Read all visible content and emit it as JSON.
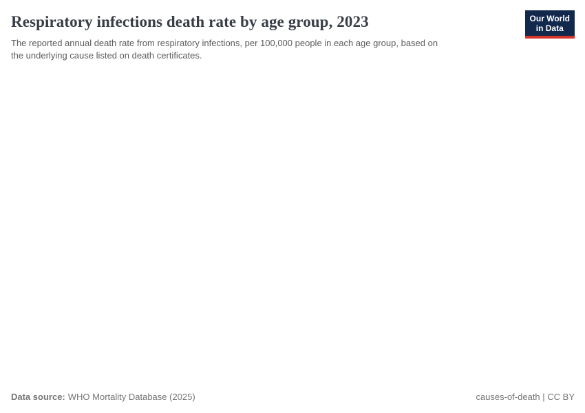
{
  "header": {
    "title": "Respiratory infections death rate by age group, 2023",
    "subtitle": "The reported annual death rate from respiratory infections, per 100,000 people in each age group, based on\nthe underlying cause listed on death certificates.",
    "logo": {
      "line1": "Our World",
      "line2": "in Data"
    }
  },
  "chart_data": {
    "type": "none",
    "title": "Respiratory infections death rate by age group, 2023",
    "year_shown": "2023",
    "series": [],
    "plot_area_empty": true
  },
  "footer": {
    "source_label": "Data source:",
    "source_value": "WHO Mortality Database (2025)",
    "license": "causes-of-death | CC BY"
  },
  "colors": {
    "title_text": "#383d46",
    "subtitle_text": "#5b5b5b",
    "footer_text": "#757575",
    "logo_background": "#12294d",
    "logo_red_bar": "#d8352a",
    "page_background": "#ffffff"
  }
}
